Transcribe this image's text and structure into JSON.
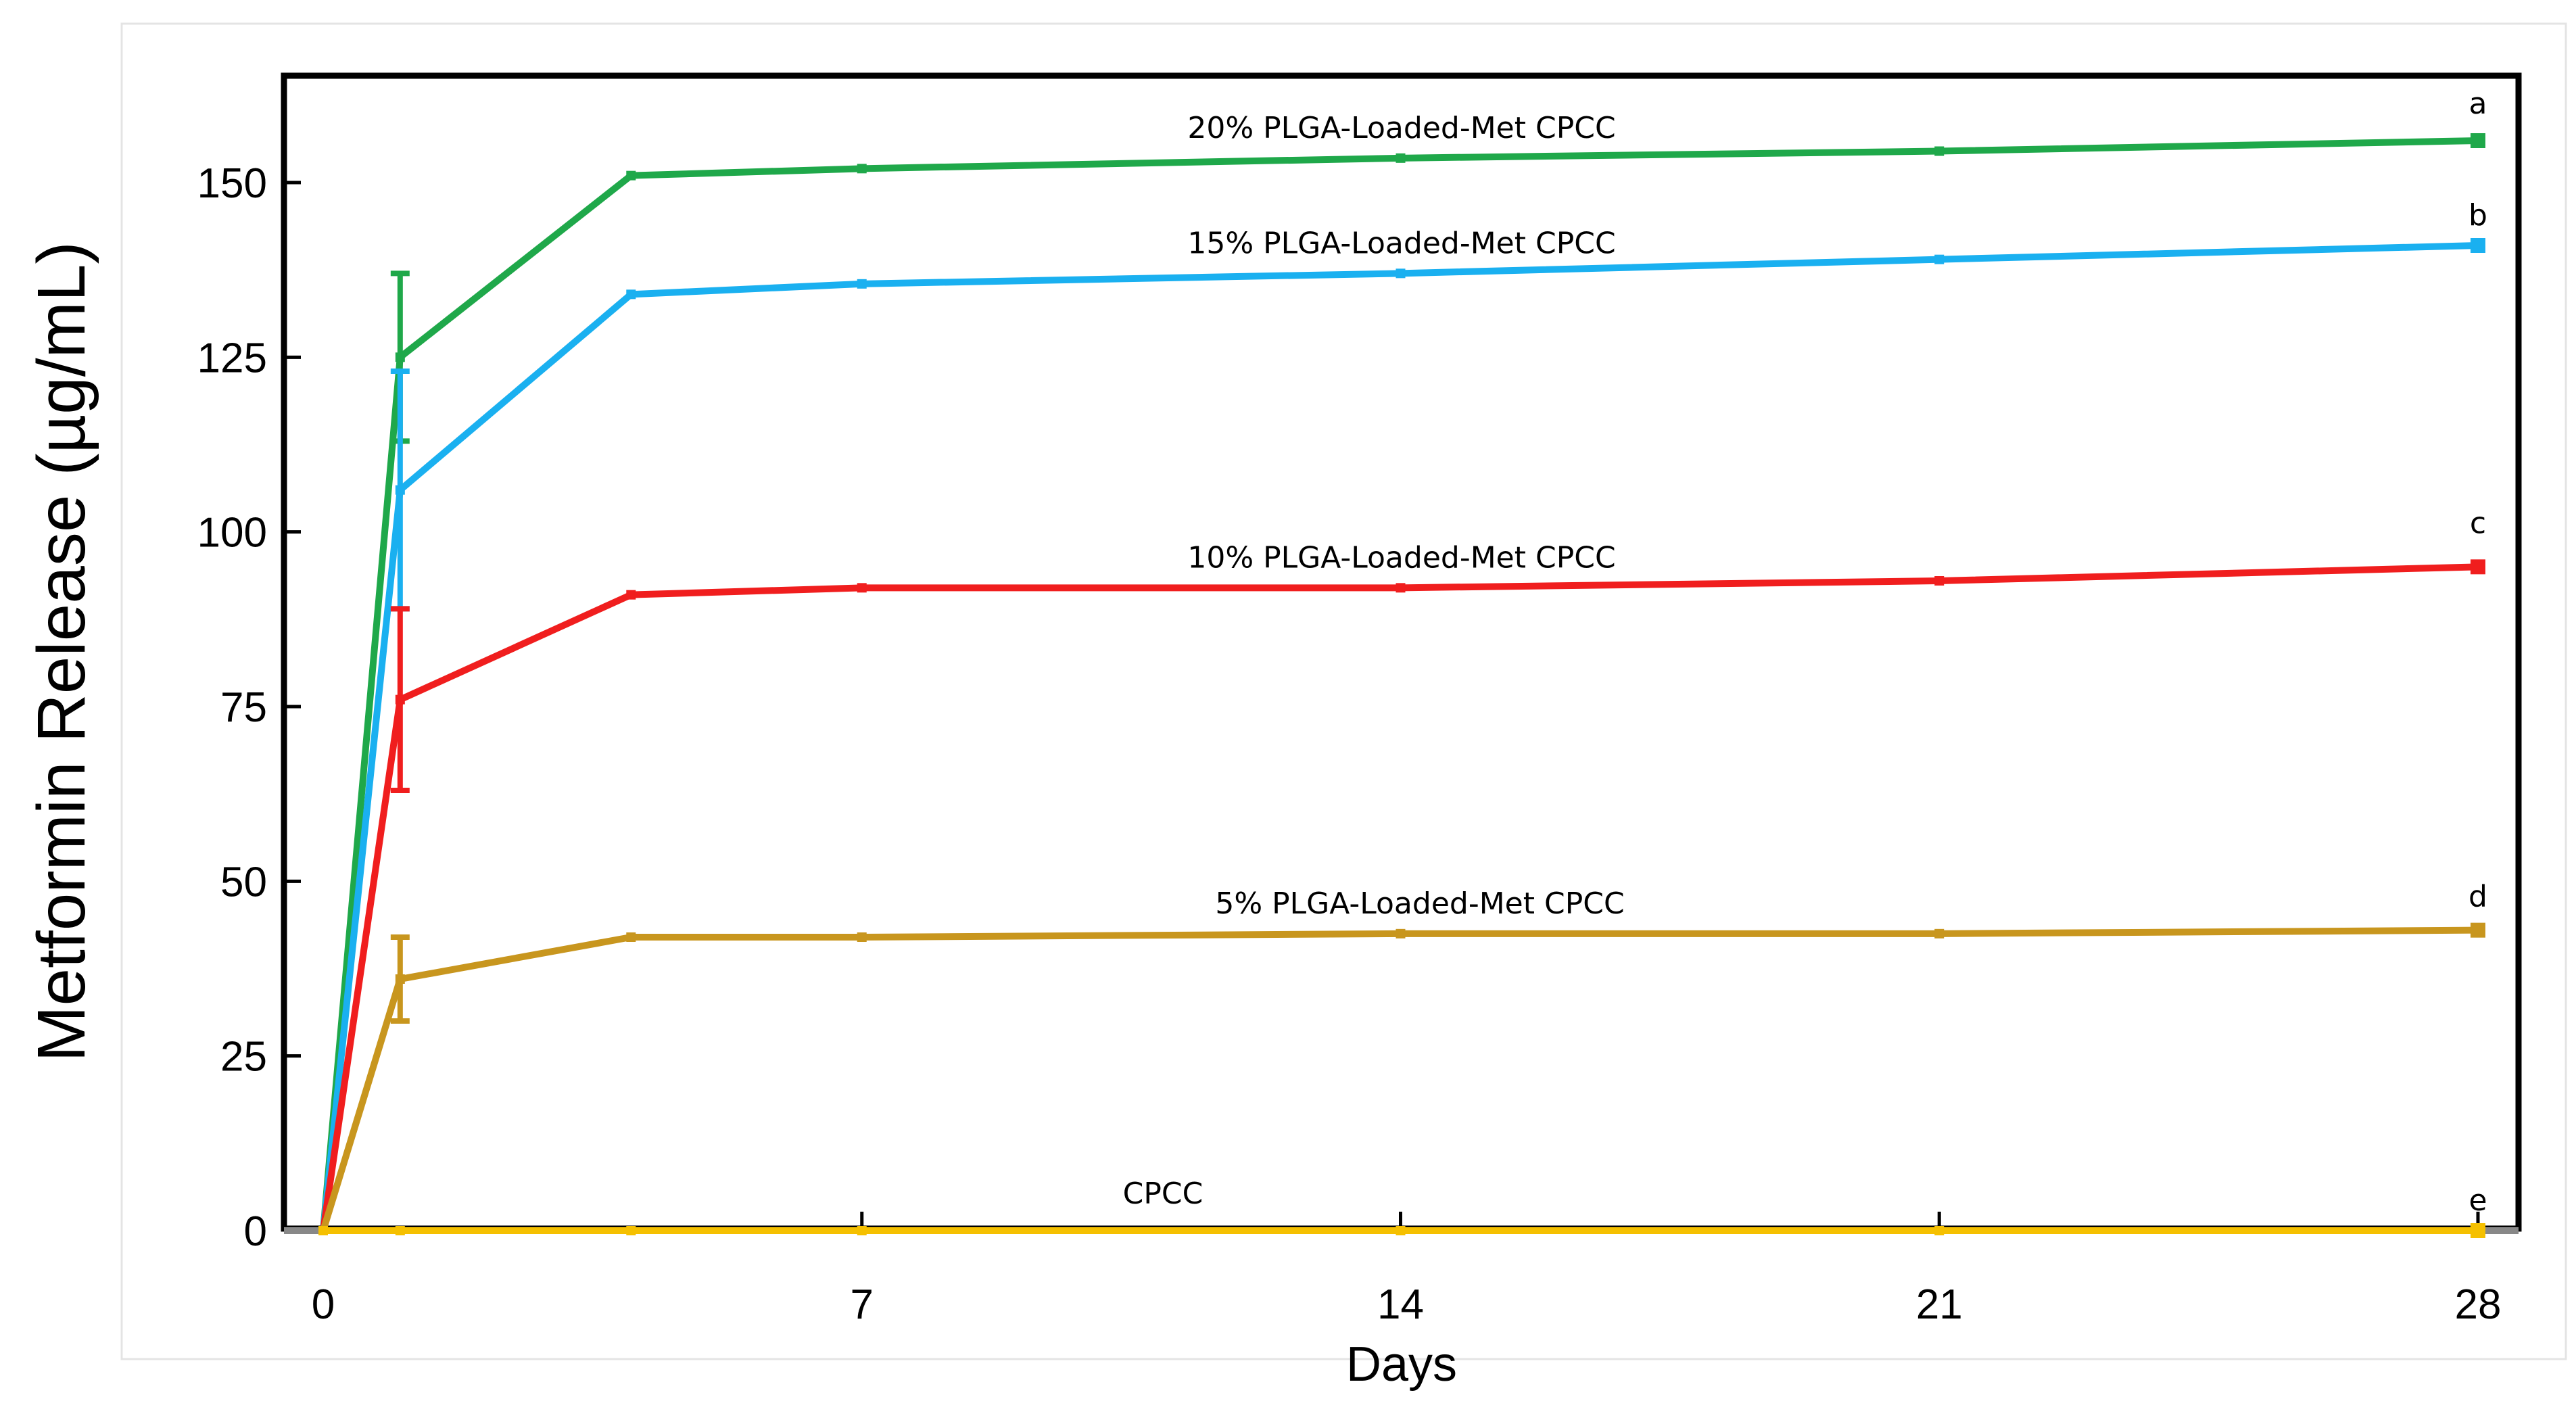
{
  "chart_data": {
    "type": "line",
    "title": "",
    "xlabel": "Days",
    "ylabel": "Metformin Release (µg/mL)",
    "xlim": [
      0,
      28
    ],
    "ylim": [
      0,
      160
    ],
    "xticks": [
      0,
      7,
      14,
      21,
      28
    ],
    "yticks": [
      0,
      25,
      50,
      75,
      100,
      125,
      150
    ],
    "grid": false,
    "legend": "inline labels",
    "series": [
      {
        "name": "20% PLGA-Loaded-Met CPCC",
        "letter": "a",
        "color": "#1fa84a",
        "x": [
          0,
          1,
          4,
          7,
          14,
          21,
          28
        ],
        "y": [
          0,
          125,
          151,
          152,
          153.5,
          154.5,
          156
        ],
        "error": [
          0,
          12,
          0,
          0,
          0,
          0,
          0
        ]
      },
      {
        "name": "15% PLGA-Loaded-Met CPCC",
        "letter": "b",
        "color": "#1ab0f0",
        "x": [
          0,
          1,
          4,
          7,
          14,
          21,
          28
        ],
        "y": [
          0,
          106,
          134,
          135.5,
          137,
          139,
          141
        ],
        "error": [
          0,
          17,
          0,
          0,
          0,
          0,
          0
        ]
      },
      {
        "name": "10% PLGA-Loaded-Met CPCC",
        "letter": "c",
        "color": "#f01e1e",
        "x": [
          0,
          1,
          4,
          7,
          14,
          21,
          28
        ],
        "y": [
          0,
          76,
          91,
          92,
          92,
          93,
          95
        ],
        "error": [
          0,
          13,
          0,
          0,
          0,
          0,
          0
        ]
      },
      {
        "name": "5% PLGA-Loaded-Met CPCC",
        "letter": "d",
        "color": "#c8961e",
        "x": [
          0,
          1,
          4,
          7,
          14,
          21,
          28
        ],
        "y": [
          0,
          36,
          42,
          42,
          42.5,
          42.5,
          43
        ],
        "error": [
          0,
          6,
          0,
          0,
          0,
          0,
          0
        ]
      },
      {
        "name": "CPCC",
        "letter": "e",
        "color": "#f5c000",
        "x": [
          0,
          1,
          4,
          7,
          14,
          21,
          28
        ],
        "y": [
          0,
          0,
          0,
          0,
          0,
          0,
          0
        ],
        "error": [
          0,
          0,
          0,
          0,
          0,
          0,
          0
        ]
      }
    ]
  }
}
